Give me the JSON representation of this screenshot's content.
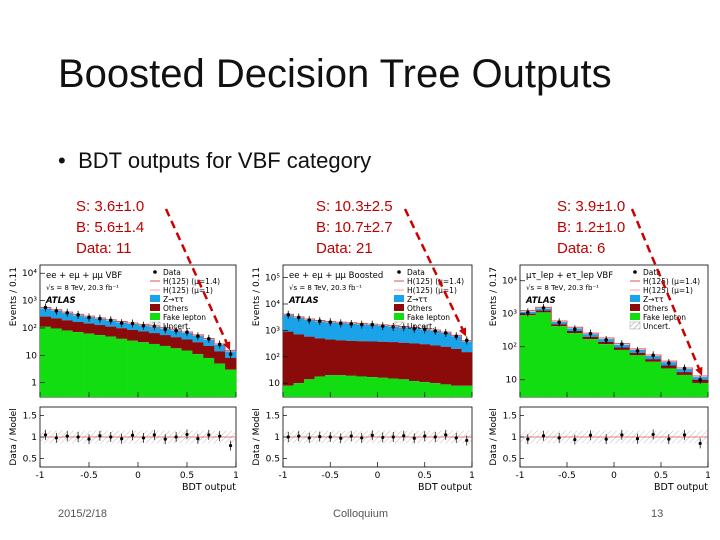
{
  "slide": {
    "title": "Boosted Decision Tree Outputs",
    "bullet": "BDT outputs for VBF category",
    "footer_date": "2015/2/18",
    "footer_center": "Colloquium",
    "page_number": "13"
  },
  "colors": {
    "signal_line": "#e05050",
    "Z_tautau": "#1aa3e8",
    "Others": "#8b0a0a",
    "Fake_lepton": "#11dd11",
    "Uncert": "#888888",
    "annotation": "#cc0000"
  },
  "chart_data": [
    {
      "type": "bar",
      "stats": [
        "S: 3.6±1.0",
        "B: 5.6±1.4",
        "Data: 11"
      ],
      "channel": "ee + eμ + μμ VBF",
      "energy": "√s = 8 TeV, 20.3 fb⁻¹",
      "atlas": "ATLAS",
      "ylabel": "Events / 0.11",
      "ratio_ylabel": "Data / Model",
      "xlabel": "BDT output",
      "legend": [
        "Data",
        "H(125) (μ=1.4)",
        "H(125) (μ=1)",
        "Z→ττ",
        "Others",
        "Fake lepton",
        "Uncert."
      ],
      "xticks": [
        "-1",
        "-0.5",
        "0",
        "0.5",
        "1"
      ],
      "yticks": [
        "1",
        "10",
        "10²",
        "10³",
        "10⁴"
      ],
      "ratio_yticks": [
        "0.5",
        "1",
        "1.5"
      ],
      "xlim": [
        -1,
        1
      ],
      "ylim_log": [
        0.3,
        20000
      ],
      "bins": 18,
      "fake": [
        110,
        95,
        80,
        70,
        62,
        55,
        48,
        40,
        34,
        30,
        26,
        22,
        18,
        15,
        11,
        8,
        5,
        3
      ],
      "others": [
        260,
        225,
        190,
        165,
        145,
        128,
        112,
        98,
        85,
        75,
        65,
        55,
        46,
        38,
        30,
        22,
        14,
        8
      ],
      "ztt": [
        520,
        430,
        350,
        290,
        250,
        215,
        185,
        160,
        140,
        125,
        110,
        95,
        80,
        66,
        52,
        38,
        24,
        14
      ],
      "data": [
        560,
        420,
        360,
        300,
        240,
        220,
        190,
        150,
        145,
        120,
        115,
        90,
        80,
        70,
        50,
        40,
        25,
        11
      ],
      "ratio": [
        1.05,
        0.98,
        1.02,
        1.0,
        0.95,
        1.03,
        1.0,
        0.96,
        1.04,
        0.98,
        1.05,
        0.95,
        1.0,
        1.06,
        0.96,
        1.05,
        1.02,
        0.8
      ]
    },
    {
      "type": "bar",
      "stats": [
        "S: 10.3±2.5",
        "B: 10.7±2.7",
        "Data: 21"
      ],
      "channel": "ee + eμ + μμ Boosted",
      "energy": "√s = 8 TeV, 20.3 fb⁻¹",
      "atlas": "ATLAS",
      "ylabel": "Events / 0.11",
      "ratio_ylabel": "Data / Model",
      "xlabel": "BDT output",
      "legend": [
        "Data",
        "H(125) (μ=1.4)",
        "H(125) (μ=1)",
        "Z→ττ",
        "Others",
        "Fake lepton",
        "Uncert."
      ],
      "xticks": [
        "-1",
        "-0.5",
        "0",
        "0.5",
        "1"
      ],
      "yticks": [
        "10",
        "10²",
        "10³",
        "10⁴",
        "10⁵"
      ],
      "ratio_yticks": [
        "0.5",
        "1",
        "1.5"
      ],
      "xlim": [
        -1,
        1
      ],
      "ylim_log": [
        3,
        300000
      ],
      "bins": 18,
      "fake": [
        8,
        10,
        14,
        18,
        20,
        20,
        19,
        18,
        17,
        16,
        15,
        14,
        12,
        11,
        10,
        9,
        8,
        8
      ],
      "others": [
        900,
        700,
        580,
        500,
        450,
        420,
        400,
        390,
        380,
        370,
        360,
        340,
        320,
        300,
        270,
        240,
        200,
        150
      ],
      "ztt": [
        3800,
        3000,
        2500,
        2200,
        2000,
        1900,
        1800,
        1700,
        1600,
        1500,
        1400,
        1300,
        1200,
        1100,
        950,
        800,
        600,
        380
      ],
      "data": [
        3900,
        3100,
        2450,
        2250,
        2050,
        1850,
        1750,
        1650,
        1650,
        1450,
        1350,
        1300,
        1150,
        1100,
        950,
        800,
        600,
        420
      ],
      "ratio": [
        1.0,
        1.02,
        0.98,
        1.01,
        1.0,
        0.97,
        1.02,
        0.98,
        1.04,
        0.99,
        1.0,
        1.03,
        0.97,
        1.02,
        1.0,
        1.05,
        0.98,
        0.92
      ]
    },
    {
      "type": "bar",
      "stats": [
        "S: 3.9±1.0",
        "B: 1.2±1.0",
        "Data: 6"
      ],
      "channel": "μτ_lep + eτ_lep VBF",
      "energy": "√s = 8 TeV, 20.3 fb⁻¹",
      "atlas": "ATLAS",
      "ylabel": "Events / 0.17",
      "ratio_ylabel": "Data / Model",
      "xlabel": "BDT output",
      "legend": [
        "Data",
        "H(125) (μ=1.4)",
        "H(125) (μ=1)",
        "Z→ττ",
        "Others",
        "Fake lepton",
        "Uncert."
      ],
      "xticks": [
        "-1",
        "-0.5",
        "0",
        "0.5",
        "1"
      ],
      "yticks": [
        "10",
        "10²",
        "10³",
        "10⁴"
      ],
      "ratio_yticks": [
        "0.5",
        "1",
        "1.5"
      ],
      "xlim": [
        -1,
        1
      ],
      "ylim_log": [
        3,
        30000
      ],
      "bins": 12,
      "fake": [
        900,
        1100,
        420,
        260,
        170,
        120,
        80,
        55,
        35,
        22,
        14,
        8
      ],
      "others": [
        1000,
        1250,
        480,
        300,
        200,
        140,
        95,
        65,
        42,
        27,
        17,
        10
      ],
      "ztt": [
        1150,
        1450,
        560,
        360,
        240,
        170,
        115,
        80,
        52,
        34,
        21,
        12
      ],
      "data": [
        1100,
        1500,
        550,
        340,
        250,
        160,
        120,
        75,
        55,
        32,
        22,
        10
      ],
      "ratio": [
        0.95,
        1.03,
        0.98,
        0.94,
        1.04,
        0.95,
        1.05,
        0.96,
        1.06,
        0.95,
        1.05,
        0.85
      ]
    }
  ]
}
